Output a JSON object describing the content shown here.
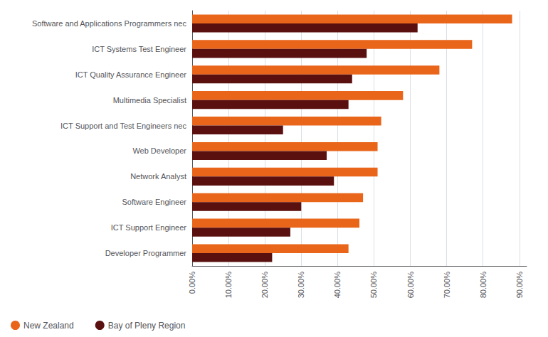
{
  "chart_data": {
    "type": "bar",
    "orientation": "horizontal",
    "categories": [
      "Software and Applications Programmers nec",
      "ICT Systems Test Engineer",
      "ICT Quality Assurance Engineer",
      "Multimedia Specialist",
      "ICT Support and Test Engineers nec",
      "Web Developer",
      "Network Analyst",
      "Software Engineer",
      "ICT Support Engineer",
      "Developer Programmer"
    ],
    "series": [
      {
        "name": "New Zealand",
        "color": "#E8651A",
        "values": [
          0.88,
          0.77,
          0.68,
          0.58,
          0.52,
          0.51,
          0.51,
          0.47,
          0.46,
          0.43
        ]
      },
      {
        "name": "Bay of Pleny Region",
        "color": "#5B1010",
        "values": [
          0.62,
          0.48,
          0.44,
          0.43,
          0.25,
          0.37,
          0.39,
          0.3,
          0.27,
          0.22
        ]
      }
    ],
    "xlim": [
      0,
      0.92
    ],
    "xticks": [
      {
        "value": 0.0,
        "label": "0.00%"
      },
      {
        "value": 0.1,
        "label": "10.00%"
      },
      {
        "value": 0.2,
        "label": "20.00%"
      },
      {
        "value": 0.3,
        "label": "30.00%"
      },
      {
        "value": 0.4,
        "label": "40.00%"
      },
      {
        "value": 0.5,
        "label": "50.00%"
      },
      {
        "value": 0.6,
        "label": "60.00%"
      },
      {
        "value": 0.7,
        "label": "70.00%"
      },
      {
        "value": 0.8,
        "label": "80.00%"
      },
      {
        "value": 0.9,
        "label": "90.00%"
      }
    ],
    "grid": true,
    "legend": "lower left"
  }
}
